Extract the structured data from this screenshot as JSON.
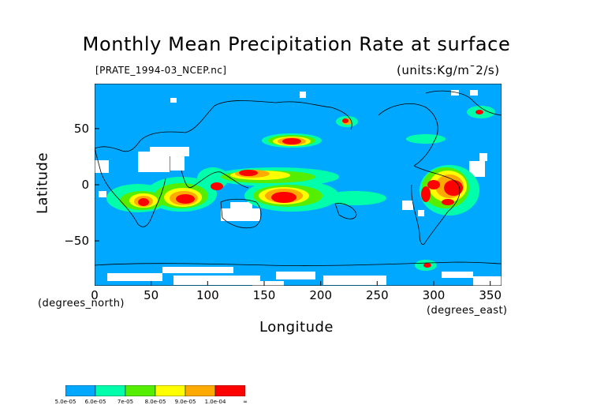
{
  "title": "Monthly Mean Precipitation Rate at surface",
  "dataset": "[PRATE_1994-03_NCEP.nc]",
  "units": "(units:Kg/m¯2/s)",
  "axes": {
    "x": {
      "label": "Longitude",
      "unit": "(degrees_east)",
      "ticks": [
        "0",
        "50",
        "100",
        "150",
        "200",
        "250",
        "300",
        "350"
      ],
      "range": [
        0,
        360
      ]
    },
    "y": {
      "label": "Latitude",
      "unit": "(degrees_north)",
      "ticks": [
        "50",
        "0",
        "−50"
      ],
      "range": [
        -90,
        90
      ]
    }
  },
  "colorbar": {
    "labels": [
      "5.0e-05",
      "6.0e-05",
      "7e-05",
      "8.0e-05",
      "9.0e-05",
      "1.0e-04",
      "∞"
    ],
    "colors": [
      "#00a8ff",
      "#00ffaa",
      "#55ee00",
      "#ffff00",
      "#ffaa00",
      "#ff0000"
    ]
  },
  "colors": {
    "background_field": "#00a8ff",
    "missing": "#ffffff",
    "coast": "#000000"
  }
}
